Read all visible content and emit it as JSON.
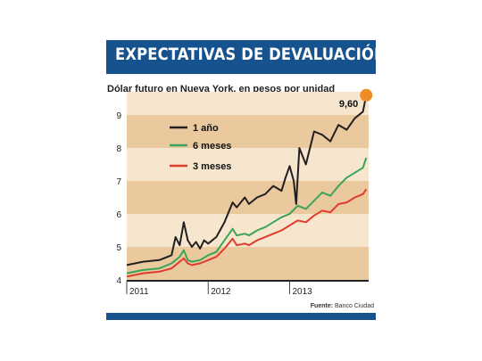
{
  "title": "EXPECTATIVAS DE DEVALUACIÓN",
  "source_label": "Fuente:",
  "source_value": "Banco Ciudad",
  "colors": {
    "brand": "#16538e",
    "band_dark": "#e9c99d",
    "band_light": "#f6e6cd",
    "marker": "#f08c28"
  },
  "chart_data": {
    "type": "line",
    "title": "Dólar futuro en Nueva York, en pesos por unidad",
    "xlabel": "",
    "ylabel": "",
    "ylim": [
      4,
      9.6
    ],
    "yticks": [
      "4",
      "5",
      "6",
      "7",
      "8",
      "9"
    ],
    "xticks": [
      {
        "label": "2011",
        "x": 2011.0
      },
      {
        "label": "2012",
        "x": 2012.0
      },
      {
        "label": "2013",
        "x": 2013.0
      }
    ],
    "xlim": [
      2011.0,
      2013.97
    ],
    "annotation": {
      "text": "9,60",
      "x": 2013.94,
      "y": 9.6
    },
    "series": [
      {
        "name": "1 año",
        "color": "#231f20",
        "x": [
          2011.0,
          2011.2,
          2011.4,
          2011.55,
          2011.6,
          2011.65,
          2011.7,
          2011.75,
          2011.8,
          2011.85,
          2011.9,
          2011.95,
          2012.0,
          2012.1,
          2012.2,
          2012.3,
          2012.35,
          2012.45,
          2012.5,
          2012.6,
          2012.7,
          2012.8,
          2012.9,
          2012.95,
          2013.0,
          2013.05,
          2013.08,
          2013.12,
          2013.2,
          2013.3,
          2013.4,
          2013.5,
          2013.6,
          2013.7,
          2013.8,
          2013.9,
          2013.94
        ],
        "y": [
          4.45,
          4.55,
          4.6,
          4.75,
          5.3,
          5.05,
          5.75,
          5.2,
          5.0,
          5.15,
          4.95,
          5.2,
          5.1,
          5.3,
          5.75,
          6.35,
          6.2,
          6.5,
          6.3,
          6.5,
          6.6,
          6.85,
          6.7,
          7.1,
          7.45,
          7.0,
          6.3,
          8.0,
          7.5,
          8.5,
          8.4,
          8.2,
          8.7,
          8.55,
          8.9,
          9.1,
          9.6
        ]
      },
      {
        "name": "6 meses",
        "color": "#3aa45a",
        "x": [
          2011.0,
          2011.2,
          2011.4,
          2011.55,
          2011.65,
          2011.7,
          2011.75,
          2011.8,
          2011.9,
          2012.0,
          2012.1,
          2012.2,
          2012.3,
          2012.35,
          2012.45,
          2012.5,
          2012.6,
          2012.7,
          2012.8,
          2012.9,
          2013.0,
          2013.1,
          2013.2,
          2013.3,
          2013.4,
          2013.5,
          2013.6,
          2013.7,
          2013.8,
          2013.9,
          2013.94
        ],
        "y": [
          4.2,
          4.3,
          4.35,
          4.5,
          4.7,
          4.9,
          4.6,
          4.55,
          4.6,
          4.75,
          4.85,
          5.2,
          5.55,
          5.35,
          5.4,
          5.35,
          5.5,
          5.6,
          5.75,
          5.9,
          6.0,
          6.25,
          6.15,
          6.4,
          6.65,
          6.55,
          6.85,
          7.1,
          7.25,
          7.4,
          7.7
        ]
      },
      {
        "name": "3 meses",
        "color": "#e03c2e",
        "x": [
          2011.0,
          2011.2,
          2011.4,
          2011.55,
          2011.65,
          2011.7,
          2011.75,
          2011.8,
          2011.9,
          2012.0,
          2012.1,
          2012.2,
          2012.3,
          2012.35,
          2012.45,
          2012.5,
          2012.6,
          2012.7,
          2012.8,
          2012.9,
          2013.0,
          2013.1,
          2013.2,
          2013.3,
          2013.4,
          2013.5,
          2013.6,
          2013.7,
          2013.8,
          2013.9,
          2013.94
        ],
        "y": [
          4.1,
          4.2,
          4.25,
          4.35,
          4.55,
          4.65,
          4.5,
          4.45,
          4.5,
          4.6,
          4.7,
          4.95,
          5.25,
          5.05,
          5.1,
          5.05,
          5.2,
          5.3,
          5.4,
          5.5,
          5.65,
          5.8,
          5.75,
          5.95,
          6.1,
          6.05,
          6.3,
          6.35,
          6.5,
          6.6,
          6.75
        ]
      }
    ]
  }
}
